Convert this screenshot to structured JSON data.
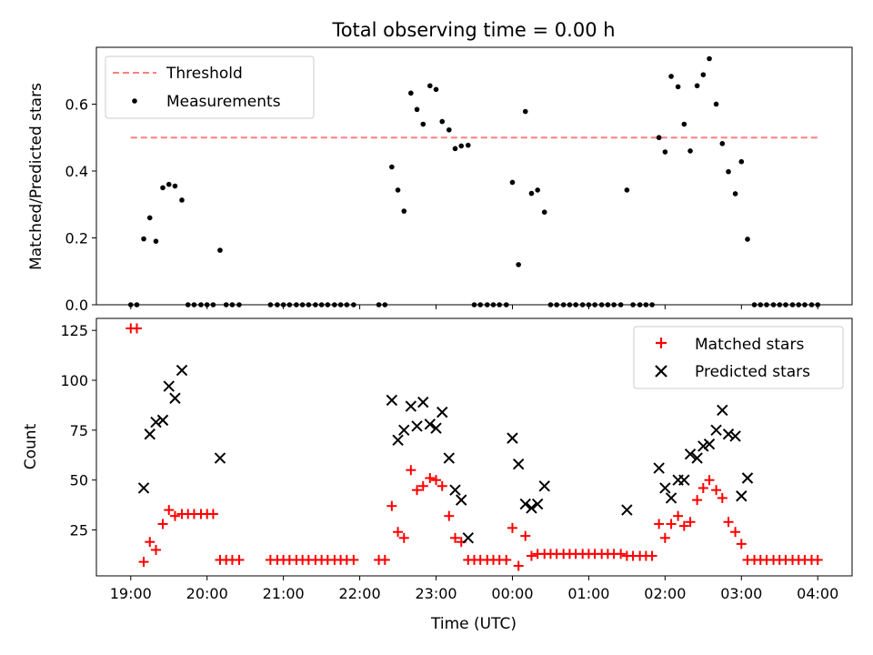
{
  "figure": {
    "title": "Total observing time = 0.00 h"
  },
  "chart_data": [
    {
      "type": "scatter",
      "panel": "top",
      "ylabel": "Matched/Predicted stars",
      "xlabel": "",
      "xlim": [
        -0.45,
        9.45
      ],
      "ylim": [
        0,
        0.77
      ],
      "yticks": [
        0.0,
        0.2,
        0.4,
        0.6
      ],
      "ytick_labels": [
        "0.0",
        "0.2",
        "0.4",
        "0.6"
      ],
      "grid": false,
      "legend": "top-left",
      "threshold": {
        "name": "Threshold",
        "y": 0.5,
        "x_range": [
          0.0,
          9.0
        ],
        "color": "#ff7f7f",
        "style": "dashed"
      },
      "series": [
        {
          "name": "Measurements",
          "color": "#000000",
          "marker": "dot",
          "points": [
            [
              0.0,
              0.0
            ],
            [
              0.08,
              0.0
            ],
            [
              0.17,
              0.197
            ],
            [
              0.25,
              0.26
            ],
            [
              0.33,
              0.19
            ],
            [
              0.42,
              0.35
            ],
            [
              0.5,
              0.36
            ],
            [
              0.58,
              0.355
            ],
            [
              0.67,
              0.313
            ],
            [
              0.75,
              0.0
            ],
            [
              0.83,
              0.0
            ],
            [
              0.92,
              0.0
            ],
            [
              1.0,
              0.0
            ],
            [
              1.08,
              0.0
            ],
            [
              1.17,
              0.163
            ],
            [
              1.25,
              0.0
            ],
            [
              1.33,
              0.0
            ],
            [
              1.42,
              0.0
            ],
            [
              1.83,
              0.0
            ],
            [
              1.92,
              0.0
            ],
            [
              2.0,
              0.0
            ],
            [
              2.08,
              0.0
            ],
            [
              2.17,
              0.0
            ],
            [
              2.25,
              0.0
            ],
            [
              2.33,
              0.0
            ],
            [
              2.42,
              0.0
            ],
            [
              2.5,
              0.0
            ],
            [
              2.58,
              0.0
            ],
            [
              2.67,
              0.0
            ],
            [
              2.75,
              0.0
            ],
            [
              2.83,
              0.0
            ],
            [
              2.92,
              0.0
            ],
            [
              3.25,
              0.0
            ],
            [
              3.33,
              0.0
            ],
            [
              3.42,
              0.412
            ],
            [
              3.5,
              0.343
            ],
            [
              3.58,
              0.28
            ],
            [
              3.67,
              0.633
            ],
            [
              3.75,
              0.584
            ],
            [
              3.83,
              0.54
            ],
            [
              3.92,
              0.655
            ],
            [
              4.0,
              0.644
            ],
            [
              4.08,
              0.548
            ],
            [
              4.17,
              0.523
            ],
            [
              4.25,
              0.467
            ],
            [
              4.33,
              0.475
            ],
            [
              4.42,
              0.477
            ],
            [
              4.5,
              0.0
            ],
            [
              4.58,
              0.0
            ],
            [
              4.67,
              0.0
            ],
            [
              4.75,
              0.0
            ],
            [
              4.83,
              0.0
            ],
            [
              4.92,
              0.0
            ],
            [
              5.0,
              0.366
            ],
            [
              5.08,
              0.12
            ],
            [
              5.17,
              0.578
            ],
            [
              5.25,
              0.333
            ],
            [
              5.33,
              0.343
            ],
            [
              5.42,
              0.277
            ],
            [
              5.5,
              0.0
            ],
            [
              5.58,
              0.0
            ],
            [
              5.67,
              0.0
            ],
            [
              5.75,
              0.0
            ],
            [
              5.83,
              0.0
            ],
            [
              5.92,
              0.0
            ],
            [
              6.0,
              0.0
            ],
            [
              6.08,
              0.0
            ],
            [
              6.17,
              0.0
            ],
            [
              6.25,
              0.0
            ],
            [
              6.33,
              0.0
            ],
            [
              6.42,
              0.0
            ],
            [
              6.5,
              0.343
            ],
            [
              6.58,
              0.0
            ],
            [
              6.67,
              0.0
            ],
            [
              6.75,
              0.0
            ],
            [
              6.83,
              0.0
            ],
            [
              6.92,
              0.5
            ],
            [
              7.0,
              0.457
            ],
            [
              7.08,
              0.683
            ],
            [
              7.17,
              0.652
            ],
            [
              7.25,
              0.54
            ],
            [
              7.33,
              0.46
            ],
            [
              7.42,
              0.655
            ],
            [
              7.5,
              0.688
            ],
            [
              7.58,
              0.736
            ],
            [
              7.67,
              0.6
            ],
            [
              7.75,
              0.482
            ],
            [
              7.83,
              0.398
            ],
            [
              7.92,
              0.332
            ],
            [
              8.0,
              0.428
            ],
            [
              8.08,
              0.196
            ],
            [
              8.17,
              0.0
            ],
            [
              8.25,
              0.0
            ],
            [
              8.33,
              0.0
            ],
            [
              8.42,
              0.0
            ],
            [
              8.5,
              0.0
            ],
            [
              8.58,
              0.0
            ],
            [
              8.67,
              0.0
            ],
            [
              8.75,
              0.0
            ],
            [
              8.83,
              0.0
            ],
            [
              8.92,
              0.0
            ],
            [
              9.0,
              0.0
            ]
          ]
        }
      ]
    },
    {
      "type": "scatter",
      "panel": "bottom",
      "xlabel": "Time (UTC)",
      "ylabel": "Count",
      "xlim": [
        -0.45,
        9.45
      ],
      "ylim": [
        2,
        131
      ],
      "x_tick_positions": [
        0,
        1,
        2,
        3,
        4,
        5,
        6,
        7,
        8,
        9
      ],
      "x_tick_labels": [
        "19:00",
        "20:00",
        "21:00",
        "22:00",
        "23:00",
        "00:00",
        "01:00",
        "02:00",
        "03:00",
        "04:00"
      ],
      "yticks": [
        25,
        50,
        75,
        100,
        125
      ],
      "ytick_labels": [
        "25",
        "50",
        "75",
        "100",
        "125"
      ],
      "grid": false,
      "legend": "top-right",
      "series": [
        {
          "name": "Matched stars",
          "color": "#ff0000",
          "marker": "plus",
          "points": [
            [
              0.0,
              126
            ],
            [
              0.08,
              126
            ],
            [
              0.17,
              9
            ],
            [
              0.25,
              19
            ],
            [
              0.33,
              15
            ],
            [
              0.42,
              28
            ],
            [
              0.5,
              35
            ],
            [
              0.58,
              32
            ],
            [
              0.67,
              33
            ],
            [
              0.75,
              33
            ],
            [
              0.83,
              33
            ],
            [
              0.92,
              33
            ],
            [
              1.0,
              33
            ],
            [
              1.08,
              33
            ],
            [
              1.17,
              10
            ],
            [
              1.25,
              10
            ],
            [
              1.33,
              10
            ],
            [
              1.42,
              10
            ],
            [
              1.83,
              10
            ],
            [
              1.92,
              10
            ],
            [
              2.0,
              10
            ],
            [
              2.08,
              10
            ],
            [
              2.17,
              10
            ],
            [
              2.25,
              10
            ],
            [
              2.33,
              10
            ],
            [
              2.42,
              10
            ],
            [
              2.5,
              10
            ],
            [
              2.58,
              10
            ],
            [
              2.67,
              10
            ],
            [
              2.75,
              10
            ],
            [
              2.83,
              10
            ],
            [
              2.92,
              10
            ],
            [
              3.25,
              10
            ],
            [
              3.33,
              10
            ],
            [
              3.42,
              37
            ],
            [
              3.5,
              24
            ],
            [
              3.58,
              21
            ],
            [
              3.67,
              55
            ],
            [
              3.75,
              45
            ],
            [
              3.83,
              47
            ],
            [
              3.92,
              51
            ],
            [
              4.0,
              50
            ],
            [
              4.08,
              47
            ],
            [
              4.17,
              32
            ],
            [
              4.25,
              21
            ],
            [
              4.33,
              19
            ],
            [
              4.42,
              10
            ],
            [
              4.5,
              10
            ],
            [
              4.58,
              10
            ],
            [
              4.67,
              10
            ],
            [
              4.75,
              10
            ],
            [
              4.83,
              10
            ],
            [
              4.92,
              10
            ],
            [
              5.0,
              26
            ],
            [
              5.08,
              7
            ],
            [
              5.17,
              22
            ],
            [
              5.25,
              12
            ],
            [
              5.33,
              13
            ],
            [
              5.42,
              13
            ],
            [
              5.5,
              13
            ],
            [
              5.58,
              13
            ],
            [
              5.67,
              13
            ],
            [
              5.75,
              13
            ],
            [
              5.83,
              13
            ],
            [
              5.92,
              13
            ],
            [
              6.0,
              13
            ],
            [
              6.08,
              13
            ],
            [
              6.17,
              13
            ],
            [
              6.25,
              13
            ],
            [
              6.33,
              13
            ],
            [
              6.42,
              13
            ],
            [
              6.5,
              12
            ],
            [
              6.58,
              12
            ],
            [
              6.67,
              12
            ],
            [
              6.75,
              12
            ],
            [
              6.83,
              12
            ],
            [
              6.92,
              28
            ],
            [
              7.0,
              21
            ],
            [
              7.08,
              28
            ],
            [
              7.17,
              32
            ],
            [
              7.25,
              27
            ],
            [
              7.33,
              29
            ],
            [
              7.42,
              40
            ],
            [
              7.5,
              46
            ],
            [
              7.58,
              50
            ],
            [
              7.67,
              45
            ],
            [
              7.75,
              41
            ],
            [
              7.83,
              29
            ],
            [
              7.92,
              24
            ],
            [
              8.0,
              18
            ],
            [
              8.08,
              10
            ],
            [
              8.17,
              10
            ],
            [
              8.25,
              10
            ],
            [
              8.33,
              10
            ],
            [
              8.42,
              10
            ],
            [
              8.5,
              10
            ],
            [
              8.58,
              10
            ],
            [
              8.67,
              10
            ],
            [
              8.75,
              10
            ],
            [
              8.83,
              10
            ],
            [
              8.92,
              10
            ],
            [
              9.0,
              10
            ]
          ]
        },
        {
          "name": "Predicted stars",
          "color": "#000000",
          "marker": "x",
          "points": [
            [
              0.17,
              46
            ],
            [
              0.25,
              73
            ],
            [
              0.33,
              79
            ],
            [
              0.42,
              80
            ],
            [
              0.5,
              97
            ],
            [
              0.58,
              91
            ],
            [
              0.67,
              105
            ],
            [
              1.17,
              61
            ],
            [
              3.42,
              90
            ],
            [
              3.5,
              70
            ],
            [
              3.58,
              75
            ],
            [
              3.67,
              87
            ],
            [
              3.75,
              77
            ],
            [
              3.83,
              89
            ],
            [
              3.92,
              78
            ],
            [
              4.0,
              76
            ],
            [
              4.08,
              84
            ],
            [
              4.17,
              61
            ],
            [
              4.25,
              45
            ],
            [
              4.33,
              40
            ],
            [
              4.42,
              21
            ],
            [
              5.0,
              71
            ],
            [
              5.08,
              58
            ],
            [
              5.17,
              38
            ],
            [
              5.25,
              36
            ],
            [
              5.33,
              38
            ],
            [
              5.42,
              47
            ],
            [
              6.5,
              35
            ],
            [
              6.92,
              56
            ],
            [
              7.0,
              46
            ],
            [
              7.08,
              41
            ],
            [
              7.17,
              50
            ],
            [
              7.25,
              50
            ],
            [
              7.33,
              63
            ],
            [
              7.42,
              61
            ],
            [
              7.5,
              67
            ],
            [
              7.58,
              68
            ],
            [
              7.67,
              75
            ],
            [
              7.75,
              85
            ],
            [
              7.83,
              73
            ],
            [
              7.92,
              72
            ],
            [
              8.0,
              42
            ],
            [
              8.08,
              51
            ]
          ]
        }
      ]
    }
  ]
}
